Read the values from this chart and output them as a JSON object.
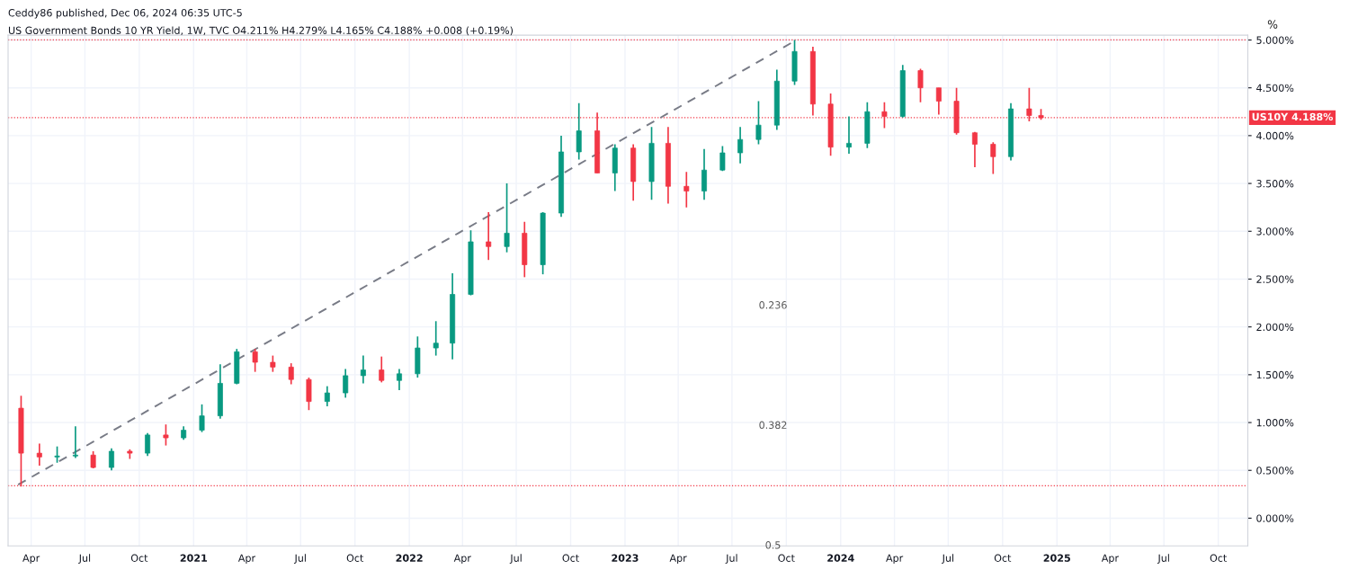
{
  "chart_data": {
    "type": "candlestick",
    "title": "Ceddy86 published, Dec 06, 2024 06:35 UTC-5",
    "subtitle": "US Government Bonds 10 YR Yield, 1W, TVC O4.211% H4.279% L4.165% C4.188% +0.008 (+0.19%)",
    "ylabel": "%",
    "x": [
      "2020-03-15",
      "2020-04-15",
      "2020-05-15",
      "2020-06-15",
      "2020-07-15",
      "2020-08-15",
      "2020-09-15",
      "2020-10-15",
      "2020-11-15",
      "2020-12-15",
      "2021-01-15",
      "2021-02-15",
      "2021-03-15",
      "2021-04-15",
      "2021-05-15",
      "2021-06-15",
      "2021-07-15",
      "2021-08-15",
      "2021-09-15",
      "2021-10-15",
      "2021-11-15",
      "2021-12-15",
      "2022-01-15",
      "2022-02-15",
      "2022-03-15",
      "2022-04-15",
      "2022-05-15",
      "2022-06-15",
      "2022-07-15",
      "2022-08-15",
      "2022-09-15",
      "2022-10-15",
      "2022-11-15",
      "2022-12-15",
      "2023-01-15",
      "2023-02-15",
      "2023-03-15",
      "2023-04-15",
      "2023-05-15",
      "2023-06-15",
      "2023-07-15",
      "2023-08-15",
      "2023-09-15",
      "2023-10-15",
      "2023-11-15",
      "2023-12-15",
      "2024-01-15",
      "2024-02-15",
      "2024-03-15",
      "2024-04-15",
      "2024-05-15",
      "2024-06-15",
      "2024-07-15",
      "2024-08-15",
      "2024-09-15",
      "2024-10-15",
      "2024-11-15",
      "2024-12-05"
    ],
    "ohlc": [
      [
        1.15,
        1.28,
        0.33,
        0.68
      ],
      [
        0.68,
        0.78,
        0.55,
        0.64
      ],
      [
        0.64,
        0.75,
        0.58,
        0.65
      ],
      [
        0.65,
        0.96,
        0.63,
        0.66
      ],
      [
        0.66,
        0.7,
        0.52,
        0.53
      ],
      [
        0.53,
        0.73,
        0.5,
        0.7
      ],
      [
        0.7,
        0.72,
        0.62,
        0.68
      ],
      [
        0.68,
        0.89,
        0.65,
        0.87
      ],
      [
        0.87,
        0.98,
        0.76,
        0.84
      ],
      [
        0.84,
        0.96,
        0.82,
        0.92
      ],
      [
        0.92,
        1.19,
        0.9,
        1.07
      ],
      [
        1.07,
        1.61,
        1.04,
        1.41
      ],
      [
        1.41,
        1.77,
        1.4,
        1.74
      ],
      [
        1.74,
        1.77,
        1.53,
        1.63
      ],
      [
        1.63,
        1.7,
        1.53,
        1.58
      ],
      [
        1.58,
        1.62,
        1.4,
        1.45
      ],
      [
        1.45,
        1.47,
        1.13,
        1.22
      ],
      [
        1.22,
        1.38,
        1.17,
        1.31
      ],
      [
        1.31,
        1.56,
        1.26,
        1.49
      ],
      [
        1.49,
        1.7,
        1.41,
        1.55
      ],
      [
        1.55,
        1.69,
        1.42,
        1.44
      ],
      [
        1.44,
        1.56,
        1.34,
        1.51
      ],
      [
        1.51,
        1.9,
        1.47,
        1.78
      ],
      [
        1.78,
        2.06,
        1.7,
        1.83
      ],
      [
        1.83,
        2.56,
        1.66,
        2.34
      ],
      [
        2.34,
        3.01,
        2.33,
        2.89
      ],
      [
        2.89,
        3.2,
        2.7,
        2.84
      ],
      [
        2.84,
        3.5,
        2.78,
        2.98
      ],
      [
        2.98,
        3.1,
        2.52,
        2.65
      ],
      [
        2.65,
        3.2,
        2.55,
        3.19
      ],
      [
        3.19,
        4.0,
        3.15,
        3.83
      ],
      [
        3.83,
        4.34,
        3.75,
        4.05
      ],
      [
        4.05,
        4.24,
        3.61,
        3.61
      ],
      [
        3.61,
        3.91,
        3.42,
        3.87
      ],
      [
        3.87,
        3.91,
        3.32,
        3.52
      ],
      [
        3.52,
        4.09,
        3.33,
        3.92
      ],
      [
        3.92,
        4.09,
        3.29,
        3.47
      ],
      [
        3.47,
        3.62,
        3.25,
        3.42
      ],
      [
        3.42,
        3.86,
        3.33,
        3.64
      ],
      [
        3.64,
        3.89,
        3.63,
        3.82
      ],
      [
        3.82,
        4.09,
        3.71,
        3.96
      ],
      [
        3.96,
        4.36,
        3.91,
        4.11
      ],
      [
        4.11,
        4.69,
        4.06,
        4.57
      ],
      [
        4.57,
        5.0,
        4.53,
        4.88
      ],
      [
        4.88,
        4.93,
        4.21,
        4.33
      ],
      [
        4.33,
        4.44,
        3.79,
        3.88
      ],
      [
        3.88,
        4.2,
        3.81,
        3.92
      ],
      [
        3.92,
        4.35,
        3.87,
        4.25
      ],
      [
        4.25,
        4.35,
        4.08,
        4.2
      ],
      [
        4.2,
        4.74,
        4.19,
        4.68
      ],
      [
        4.68,
        4.7,
        4.35,
        4.5
      ],
      [
        4.5,
        4.5,
        4.22,
        4.36
      ],
      [
        4.36,
        4.5,
        4.01,
        4.03
      ],
      [
        4.03,
        4.04,
        3.67,
        3.91
      ],
      [
        3.91,
        3.93,
        3.6,
        3.78
      ],
      [
        3.78,
        4.34,
        3.74,
        4.28
      ],
      [
        4.28,
        4.5,
        4.15,
        4.21
      ],
      [
        4.211,
        4.279,
        4.165,
        4.188
      ]
    ],
    "colors": [
      "#f23645",
      "#f23645",
      "#089981",
      "#089981",
      "#f23645",
      "#089981",
      "#f23645",
      "#089981",
      "#f23645",
      "#089981",
      "#089981",
      "#089981",
      "#089981",
      "#f23645",
      "#f23645",
      "#f23645",
      "#f23645",
      "#089981",
      "#089981",
      "#089981",
      "#f23645",
      "#089981",
      "#089981",
      "#089981",
      "#089981",
      "#089981",
      "#f23645",
      "#089981",
      "#f23645",
      "#089981",
      "#089981",
      "#089981",
      "#f23645",
      "#089981",
      "#f23645",
      "#089981",
      "#f23645",
      "#f23645",
      "#089981",
      "#089981",
      "#089981",
      "#089981",
      "#089981",
      "#089981",
      "#f23645",
      "#f23645",
      "#089981",
      "#089981",
      "#f23645",
      "#089981",
      "#f23645",
      "#f23645",
      "#f23645",
      "#f23645",
      "#f23645",
      "#089981",
      "#f23645",
      "#f23645"
    ],
    "series": [
      {
        "type": "line",
        "x": [
          "2020-03-10",
          "2023-10-18"
        ],
        "values": [
          0.35,
          5.0
        ],
        "color": "#787b86",
        "line_style": "dashed"
      }
    ],
    "ref_lines": [
      {
        "axis": "y",
        "value": 5.0,
        "color": "#f23645",
        "line_style": "dotted"
      },
      {
        "axis": "y",
        "value": 0.34,
        "color": "#f23645",
        "line_style": "dotted"
      },
      {
        "axis": "y",
        "value": 4.188,
        "label": "US10Y 4.188%",
        "color": "#f23645",
        "line_style": "dotted"
      }
    ],
    "annotations": [
      "0.236",
      "0.382",
      "0.5"
    ],
    "xlim": [
      "2020-02-22",
      "2025-11-20"
    ],
    "xticks": [
      {
        "value": "2020-04-01",
        "label": "Apr"
      },
      {
        "value": "2020-07-01",
        "label": "Jul"
      },
      {
        "value": "2020-10-01",
        "label": "Oct"
      },
      {
        "value": "2021-01-01",
        "label": "2021"
      },
      {
        "value": "2021-04-01",
        "label": "Apr"
      },
      {
        "value": "2021-07-01",
        "label": "Jul"
      },
      {
        "value": "2021-10-01",
        "label": "Oct"
      },
      {
        "value": "2022-01-01",
        "label": "2022"
      },
      {
        "value": "2022-04-01",
        "label": "Apr"
      },
      {
        "value": "2022-07-01",
        "label": "Jul"
      },
      {
        "value": "2022-10-01",
        "label": "Oct"
      },
      {
        "value": "2023-01-01",
        "label": "2023"
      },
      {
        "value": "2023-04-01",
        "label": "Apr"
      },
      {
        "value": "2023-07-01",
        "label": "Jul"
      },
      {
        "value": "2023-10-01",
        "label": "Oct"
      },
      {
        "value": "2024-01-01",
        "label": "2024"
      },
      {
        "value": "2024-04-01",
        "label": "Apr"
      },
      {
        "value": "2024-07-01",
        "label": "Jul"
      },
      {
        "value": "2024-10-01",
        "label": "Oct"
      },
      {
        "value": "2025-01-01",
        "label": "2025"
      },
      {
        "value": "2025-04-01",
        "label": "Apr"
      },
      {
        "value": "2025-07-01",
        "label": "Jul"
      },
      {
        "value": "2025-10-01",
        "label": "Oct"
      }
    ],
    "ylim": [
      -0.29,
      5.05
    ],
    "yticks": [
      {
        "value": 0,
        "label": "0.000%"
      },
      {
        "value": 0.5,
        "label": "0.500%"
      },
      {
        "value": 1,
        "label": "1.000%"
      },
      {
        "value": 1.5,
        "label": "1.500%"
      },
      {
        "value": 2,
        "label": "2.000%"
      },
      {
        "value": 2.5,
        "label": "2.500%"
      },
      {
        "value": 3,
        "label": "3.000%"
      },
      {
        "value": 3.5,
        "label": "3.500%"
      },
      {
        "value": 4,
        "label": "4.000%"
      },
      {
        "value": 4.5,
        "label": "4.500%"
      },
      {
        "value": 5,
        "label": "5.000%"
      }
    ],
    "grid": true
  }
}
